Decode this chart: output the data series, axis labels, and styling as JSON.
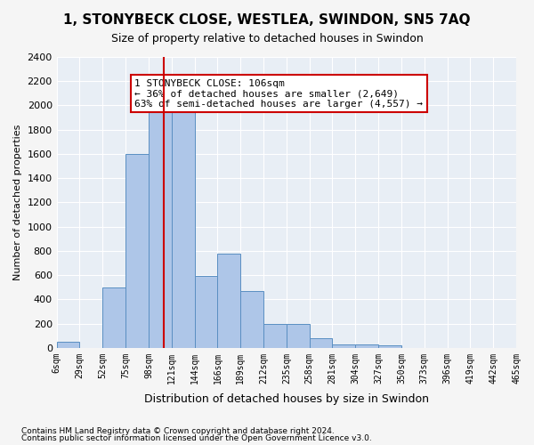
{
  "title": "1, STONYBECK CLOSE, WESTLEA, SWINDON, SN5 7AQ",
  "subtitle": "Size of property relative to detached houses in Swindon",
  "xlabel": "Distribution of detached houses by size in Swindon",
  "ylabel": "Number of detached properties",
  "bin_labels": [
    "6sqm",
    "29sqm",
    "52sqm",
    "75sqm",
    "98sqm",
    "121sqm",
    "144sqm",
    "166sqm",
    "189sqm",
    "212sqm",
    "235sqm",
    "258sqm",
    "281sqm",
    "304sqm",
    "327sqm",
    "350sqm",
    "373sqm",
    "396sqm",
    "419sqm",
    "442sqm",
    "465sqm"
  ],
  "bar_heights": [
    50,
    0,
    500,
    1600,
    1950,
    1950,
    590,
    780,
    470,
    195,
    195,
    80,
    25,
    25,
    20,
    0,
    0,
    0,
    0,
    0
  ],
  "bar_color": "#aec6e8",
  "bar_edge_color": "#5a8fc2",
  "property_line_color": "#cc0000",
  "property_line_x": 4.65,
  "annotation_text": "1 STONYBECK CLOSE: 106sqm\n← 36% of detached houses are smaller (2,649)\n63% of semi-detached houses are larger (4,557) →",
  "annotation_box_edge_color": "#cc0000",
  "ylim": [
    0,
    2400
  ],
  "yticks": [
    0,
    200,
    400,
    600,
    800,
    1000,
    1200,
    1400,
    1600,
    1800,
    2000,
    2200,
    2400
  ],
  "footnote1": "Contains HM Land Registry data © Crown copyright and database right 2024.",
  "footnote2": "Contains public sector information licensed under the Open Government Licence v3.0.",
  "fig_bg_color": "#f5f5f5",
  "plot_bg_color": "#e8eef5"
}
